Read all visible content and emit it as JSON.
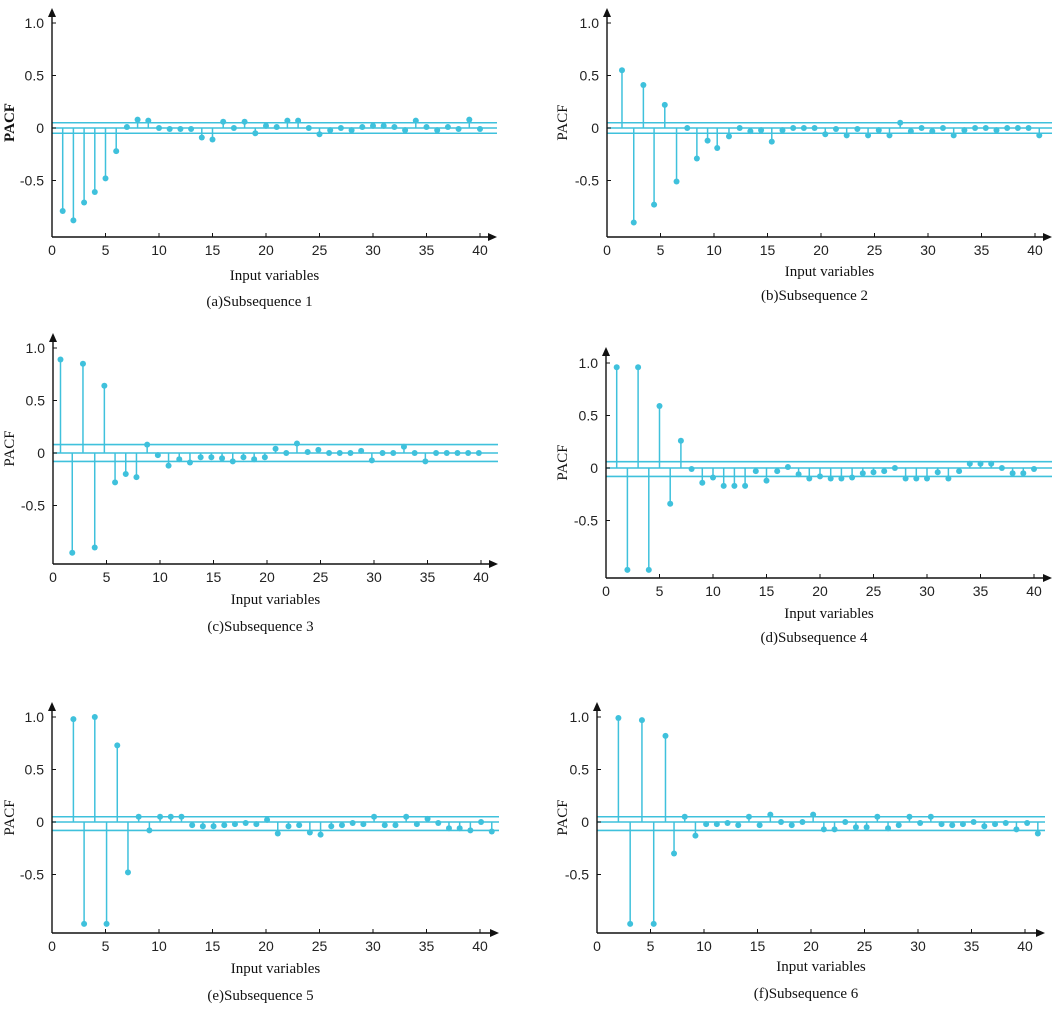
{
  "colors": {
    "stem": "#3fc1dc",
    "axis": "#111111",
    "background": "#ffffff"
  },
  "chart_data": [
    {
      "type": "stem",
      "caption": "(a)Subsequence 1",
      "xlabel": "Input variables",
      "ylabel": "PACF",
      "ylabel_bold": true,
      "xlim": [
        0,
        41
      ],
      "ylim": [
        -0.95,
        1.05
      ],
      "xticks": [
        0,
        5,
        10,
        15,
        20,
        25,
        30,
        35,
        40
      ],
      "xtick_labels": [
        "0",
        "5",
        "10",
        "15",
        "20",
        "25",
        "30",
        "35",
        "40"
      ],
      "yticks": [
        1.0,
        0.5,
        0,
        -0.5
      ],
      "ytick_labels": [
        "1.0",
        "0.5",
        "0",
        "-0.5"
      ],
      "confidence_band": [
        0.05,
        -0.05
      ],
      "x": [
        1,
        2,
        3,
        4,
        5,
        6,
        7,
        8,
        9,
        10,
        11,
        12,
        13,
        14,
        15,
        16,
        17,
        18,
        19,
        20,
        21,
        22,
        23,
        24,
        25,
        26,
        27,
        28,
        29,
        30,
        31,
        32,
        33,
        34,
        35,
        36,
        37,
        38,
        39,
        40
      ],
      "values": [
        -0.79,
        -0.88,
        -0.71,
        -0.61,
        -0.48,
        -0.22,
        0.01,
        0.08,
        0.07,
        0.0,
        -0.01,
        -0.01,
        -0.01,
        -0.09,
        -0.11,
        0.06,
        0.0,
        0.06,
        -0.05,
        0.02,
        0.01,
        0.07,
        0.07,
        0.0,
        -0.06,
        -0.02,
        0.0,
        -0.02,
        0.01,
        0.02,
        0.02,
        0.01,
        -0.02,
        0.07,
        0.01,
        -0.02,
        0.01,
        -0.01,
        0.08,
        -0.01
      ]
    },
    {
      "type": "stem",
      "caption": "(b)Subsequence 2",
      "xlabel": "Input variables",
      "ylabel": "PACF",
      "ylabel_bold": false,
      "xlim": [
        0,
        41
      ],
      "ylim": [
        -0.95,
        1.05
      ],
      "xticks": [
        0,
        5,
        10,
        15,
        20,
        25,
        30,
        35,
        40
      ],
      "xtick_labels": [
        "0",
        "5",
        "10",
        "15",
        "20",
        "25",
        "30",
        "35",
        "40"
      ],
      "yticks": [
        1.0,
        0.5,
        0,
        -0.5
      ],
      "ytick_labels": [
        "1.0",
        "0.5",
        "0",
        "-0.5"
      ],
      "confidence_band": [
        0.05,
        -0.05
      ],
      "x": [
        1.4,
        2.5,
        3.4,
        4.4,
        5.4,
        6.5,
        7.5,
        8.4,
        9.4,
        10.3,
        11.4,
        12.4,
        13.4,
        14.4,
        15.4,
        16.4,
        17.4,
        18.4,
        19.4,
        20.4,
        21.4,
        22.4,
        23.4,
        24.4,
        25.4,
        26.4,
        27.4,
        28.4,
        29.4,
        30.4,
        31.4,
        32.4,
        33.4,
        34.4,
        35.4,
        36.4,
        37.4,
        38.4,
        39.4,
        40.4
      ],
      "values": [
        0.55,
        -0.9,
        0.41,
        -0.73,
        0.22,
        -0.51,
        0.0,
        -0.29,
        -0.12,
        -0.19,
        -0.08,
        0.0,
        -0.03,
        -0.02,
        -0.13,
        -0.02,
        0.0,
        0.0,
        0.0,
        -0.06,
        -0.01,
        -0.07,
        -0.01,
        -0.07,
        -0.02,
        -0.07,
        0.05,
        -0.03,
        0.0,
        -0.03,
        0.0,
        -0.07,
        -0.02,
        0.0,
        0.0,
        -0.02,
        0.0,
        0.0,
        0.0,
        -0.07
      ]
    },
    {
      "type": "stem",
      "caption": "(c)Subsequence 3",
      "xlabel": "Input variables",
      "ylabel": "PACF",
      "ylabel_bold": false,
      "xlim": [
        0,
        41
      ],
      "ylim": [
        -0.95,
        1.05
      ],
      "xticks": [
        0,
        5,
        10,
        15,
        20,
        25,
        30,
        35,
        40
      ],
      "xtick_labels": [
        "0",
        "5",
        "10",
        "15",
        "20",
        "25",
        "30",
        "35",
        "40"
      ],
      "yticks": [
        1.0,
        0.5,
        0,
        -0.5
      ],
      "ytick_labels": [
        "1.0",
        "0.5",
        "0",
        "-0.5"
      ],
      "confidence_band": [
        0.08,
        -0.08
      ],
      "x": [
        0.7,
        1.8,
        2.8,
        3.9,
        4.8,
        5.8,
        6.8,
        7.8,
        8.8,
        9.8,
        10.8,
        11.8,
        12.8,
        13.8,
        14.8,
        15.8,
        16.8,
        17.8,
        18.8,
        19.8,
        20.8,
        21.8,
        22.8,
        23.8,
        24.8,
        25.8,
        26.8,
        27.8,
        28.8,
        29.8,
        30.8,
        31.8,
        32.8,
        33.8,
        34.8,
        35.8,
        36.8,
        37.8,
        38.8,
        39.8
      ],
      "values": [
        0.89,
        -0.95,
        0.85,
        -0.9,
        0.64,
        -0.28,
        -0.2,
        -0.23,
        0.08,
        -0.02,
        -0.12,
        -0.06,
        -0.09,
        -0.04,
        -0.04,
        -0.05,
        -0.08,
        -0.04,
        -0.06,
        -0.04,
        0.04,
        0.0,
        0.09,
        0.01,
        0.03,
        0.0,
        0.0,
        0.0,
        0.02,
        -0.07,
        0.0,
        0.0,
        0.06,
        0.0,
        -0.08,
        0.0,
        0.0,
        0.0,
        0.0,
        0.0
      ]
    },
    {
      "type": "stem",
      "caption": "(d)Subsequence 4",
      "xlabel": "Input variables",
      "ylabel": "PACF",
      "ylabel_bold": false,
      "xlim": [
        0,
        41
      ],
      "ylim": [
        -0.97,
        1.08
      ],
      "xticks": [
        0,
        5,
        10,
        15,
        20,
        25,
        30,
        35,
        40
      ],
      "xtick_labels": [
        "0",
        "5",
        "10",
        "15",
        "20",
        "25",
        "30",
        "35",
        "40"
      ],
      "yticks": [
        1.0,
        0.5,
        0,
        -0.5
      ],
      "ytick_labels": [
        "1.0",
        "0.5",
        "0",
        "-0.5"
      ],
      "confidence_band": [
        0.06,
        -0.08
      ],
      "x": [
        1,
        2,
        3,
        4,
        5,
        6,
        7,
        8,
        9,
        10,
        11,
        12,
        13,
        14,
        15,
        16,
        17,
        18,
        19,
        20,
        21,
        22,
        23,
        24,
        25,
        26,
        27,
        28,
        29,
        30,
        31,
        32,
        33,
        34,
        35,
        36,
        37,
        38,
        39,
        40
      ],
      "values": [
        0.96,
        -0.97,
        0.96,
        -0.97,
        0.59,
        -0.34,
        0.26,
        -0.01,
        -0.14,
        -0.09,
        -0.17,
        -0.17,
        -0.17,
        -0.03,
        -0.12,
        -0.03,
        0.01,
        -0.06,
        -0.1,
        -0.08,
        -0.1,
        -0.1,
        -0.09,
        -0.05,
        -0.04,
        -0.03,
        0.0,
        -0.1,
        -0.1,
        -0.1,
        -0.04,
        -0.1,
        -0.03,
        0.04,
        0.04,
        0.04,
        0.0,
        -0.05,
        -0.05,
        -0.01
      ]
    },
    {
      "type": "stem",
      "caption": "(e)Subsequence 5",
      "xlabel": "Input variables",
      "ylabel": "PACF",
      "ylabel_bold": false,
      "xlim": [
        0,
        42
      ],
      "ylim": [
        -0.97,
        1.08
      ],
      "xticks": [
        0,
        5,
        10,
        15,
        20,
        25,
        30,
        35,
        40
      ],
      "xtick_labels": [
        "0",
        "5",
        "10",
        "15",
        "20",
        "25",
        "30",
        "35",
        "40"
      ],
      "yticks": [
        1.0,
        0.5,
        0,
        -0.5
      ],
      "ytick_labels": [
        "1.0",
        "0.5",
        "0",
        "-0.5"
      ],
      "confidence_band": [
        0.05,
        -0.08
      ],
      "x": [
        2.0,
        3.0,
        4.0,
        5.1,
        6.1,
        7.1,
        8.1,
        9.1,
        10.1,
        11.1,
        12.1,
        13.1,
        14.1,
        15.1,
        16.1,
        17.1,
        18.1,
        19.1,
        20.1,
        21.1,
        22.1,
        23.1,
        24.1,
        25.1,
        26.1,
        27.1,
        28.1,
        29.1,
        30.1,
        31.1,
        32.1,
        33.1,
        34.1,
        35.1,
        36.1,
        37.1,
        38.1,
        39.1,
        40.1,
        41.1
      ],
      "values": [
        0.98,
        -0.97,
        1.0,
        -0.97,
        0.73,
        -0.48,
        0.05,
        -0.08,
        0.05,
        0.05,
        0.05,
        -0.03,
        -0.04,
        -0.04,
        -0.03,
        -0.02,
        -0.01,
        -0.02,
        0.02,
        -0.11,
        -0.04,
        -0.03,
        -0.1,
        -0.12,
        -0.04,
        -0.03,
        -0.01,
        -0.02,
        0.05,
        -0.03,
        -0.03,
        0.05,
        -0.02,
        0.03,
        -0.01,
        -0.06,
        -0.06,
        -0.08,
        0.0,
        -0.09
      ]
    },
    {
      "type": "stem",
      "caption": "(f)Subsequence 6",
      "xlabel": "Input variables",
      "ylabel": "PACF",
      "ylabel_bold": false,
      "xlim": [
        0,
        42
      ],
      "ylim": [
        -0.97,
        1.08
      ],
      "xticks": [
        0,
        5,
        10,
        15,
        20,
        25,
        30,
        35,
        40
      ],
      "xtick_labels": [
        "0",
        "5",
        "10",
        "15",
        "20",
        "25",
        "30",
        "35",
        "40"
      ],
      "yticks": [
        1.0,
        0.5,
        0,
        -0.5
      ],
      "ytick_labels": [
        "1.0",
        "0.5",
        "0",
        "-0.5"
      ],
      "confidence_band": [
        0.05,
        -0.08
      ],
      "x": [
        2.0,
        3.1,
        4.2,
        5.3,
        6.4,
        7.2,
        8.2,
        9.2,
        10.2,
        11.2,
        12.2,
        13.2,
        14.2,
        15.2,
        16.2,
        17.2,
        18.2,
        19.2,
        20.2,
        21.2,
        22.2,
        23.2,
        24.2,
        25.2,
        26.2,
        27.2,
        28.2,
        29.2,
        30.2,
        31.2,
        32.2,
        33.2,
        34.2,
        35.2,
        36.2,
        37.2,
        38.2,
        39.2,
        40.2,
        41.2
      ],
      "values": [
        0.99,
        -0.97,
        0.97,
        -0.97,
        0.82,
        -0.3,
        0.05,
        -0.13,
        -0.02,
        -0.02,
        -0.01,
        -0.03,
        0.05,
        -0.03,
        0.07,
        0.0,
        -0.03,
        0.0,
        0.07,
        -0.07,
        -0.07,
        0.0,
        -0.05,
        -0.05,
        0.05,
        -0.06,
        -0.03,
        0.05,
        -0.01,
        0.05,
        -0.02,
        -0.03,
        -0.02,
        0.0,
        -0.04,
        -0.02,
        -0.01,
        -0.07,
        -0.01,
        -0.11
      ]
    }
  ]
}
